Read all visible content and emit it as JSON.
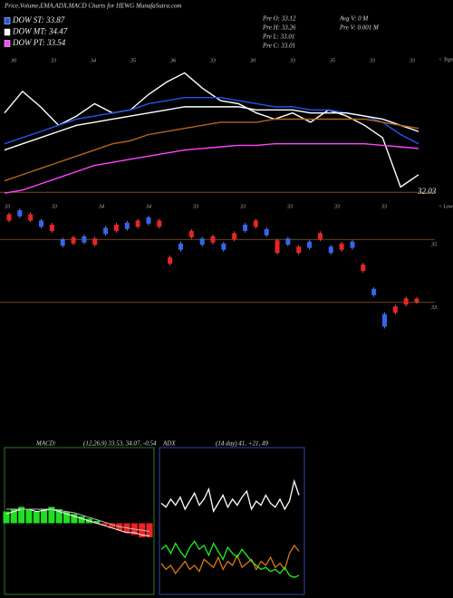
{
  "header": {
    "title": "Price,Volume,EMA,ADX,MACD Charts for HEWG MunafaSutra.com",
    "info_left": [
      "Pre  O: 33.12",
      "Pre  H: 33.26",
      "Pre  L: 33.01",
      "Pre  C: 33.01"
    ],
    "info_right": [
      "Avg V: 0  M",
      "Pre  V: 0.001 M"
    ]
  },
  "chart_data": [
    {
      "type": "line",
      "top_labels": [
        "30",
        "33",
        "34",
        "35",
        "36",
        "33",
        "30",
        "33",
        "35",
        "33",
        "33"
      ],
      "bottom_labels": [
        "33",
        "33",
        "34",
        "34",
        "33",
        "33",
        "33",
        "33",
        "33"
      ],
      "tops_label": "< Tops",
      "lows_label": "< Lows",
      "ylim": [
        31.8,
        36.5
      ],
      "hline": 32.03,
      "series": [
        {
          "color": "#ffffff",
          "values": [
            34.6,
            35.3,
            34.8,
            34.2,
            34.5,
            34.9,
            34.6,
            34.7,
            35.2,
            35.6,
            35.9,
            35.4,
            35.0,
            34.9,
            34.6,
            34.4,
            34.6,
            34.3,
            34.7,
            34.5,
            34.2,
            33.8,
            32.2,
            32.6
          ]
        },
        {
          "name": "DOW ST: 33.87",
          "color": "#2255ee",
          "values": [
            33.6,
            33.8,
            34.0,
            34.2,
            34.4,
            34.5,
            34.6,
            34.7,
            34.9,
            35.0,
            35.1,
            35.1,
            35.1,
            35.0,
            34.9,
            34.8,
            34.8,
            34.7,
            34.7,
            34.6,
            34.5,
            34.3,
            33.9,
            33.6
          ]
        },
        {
          "name": "DOW MT: 34.47",
          "color": "#ffffff",
          "values": [
            33.4,
            33.6,
            33.8,
            34.0,
            34.2,
            34.3,
            34.4,
            34.5,
            34.6,
            34.7,
            34.8,
            34.8,
            34.8,
            34.8,
            34.7,
            34.7,
            34.7,
            34.6,
            34.6,
            34.6,
            34.5,
            34.4,
            34.2,
            34.0
          ]
        },
        {
          "color": "#b5651d",
          "values": [
            32.4,
            32.6,
            32.8,
            33.0,
            33.2,
            33.4,
            33.6,
            33.7,
            33.9,
            34.0,
            34.1,
            34.2,
            34.3,
            34.3,
            34.3,
            34.4,
            34.4,
            34.4,
            34.4,
            34.4,
            34.4,
            34.3,
            34.2,
            34.1
          ]
        },
        {
          "name": "DOW PT: 33.54",
          "color": "#ff44ff",
          "values": [
            32.0,
            32.1,
            32.3,
            32.5,
            32.7,
            32.9,
            33.0,
            33.1,
            33.2,
            33.3,
            33.4,
            33.45,
            33.5,
            33.55,
            33.55,
            33.6,
            33.6,
            33.6,
            33.6,
            33.6,
            33.6,
            33.55,
            33.5,
            33.45
          ]
        }
      ]
    },
    {
      "type": "candlestick",
      "open": [
        35.8,
        35.73,
        35.8,
        35.4,
        35.47,
        34.8,
        35.07,
        34.9,
        35.03,
        35.17,
        35.47,
        35.33,
        35.6,
        35.5,
        35.6,
        34.43,
        34.67,
        35.27,
        34.83,
        35.1,
        34.67,
        35.2,
        35.27,
        35.6,
        35.13,
        34.97,
        34.83,
        34.77,
        34.73,
        35.2,
        34.57,
        34.87,
        34.73,
        34.2,
        33.23,
        32.23,
        32.87,
        33.13,
        33.12
      ],
      "close": [
        35.6,
        35.93,
        35.6,
        35.6,
        35.27,
        35.0,
        34.87,
        35.1,
        34.83,
        35.37,
        35.27,
        35.53,
        35.4,
        35.7,
        35.4,
        34.23,
        34.87,
        35.07,
        35.03,
        34.9,
        34.87,
        35.0,
        35.47,
        35.4,
        35.33,
        34.57,
        35.03,
        34.57,
        34.93,
        35.0,
        34.77,
        34.67,
        34.93,
        34.0,
        33.43,
        32.63,
        32.67,
        32.93,
        33.01
      ],
      "up_color": "#3366ee",
      "down_color": "#ee2222",
      "ylim": [
        31.9,
        36.1
      ],
      "yticks": [
        35,
        33
      ]
    },
    {
      "type": "macd",
      "label": "MACD:",
      "params": "(12,26,9) 33.53, 34.07, -0.54",
      "ylim": [
        -3,
        3
      ],
      "series": [
        {
          "color": "#ffffff",
          "values": [
            0.4,
            0.5,
            0.6,
            0.6,
            0.5,
            0.55,
            0.6,
            0.5,
            0.4,
            0.3,
            0.2,
            0.1,
            0.0,
            -0.1,
            -0.2,
            -0.3,
            -0.4,
            -0.4,
            -0.5,
            -0.54
          ]
        },
        {
          "color": "#bbbbbb",
          "values": [
            0.6,
            0.6,
            0.6,
            0.6,
            0.6,
            0.6,
            0.6,
            0.55,
            0.5,
            0.45,
            0.35,
            0.25,
            0.15,
            0.05,
            -0.05,
            -0.15,
            -0.2,
            -0.25,
            -0.3,
            -0.35
          ]
        }
      ],
      "histogram": [
        0.5,
        0.6,
        0.7,
        0.6,
        0.5,
        0.6,
        0.7,
        0.6,
        0.5,
        0.4,
        0.3,
        0.2,
        0.1,
        -0.1,
        -0.2,
        -0.3,
        -0.4,
        -0.5,
        -0.6,
        -0.6
      ],
      "pos_color": "#22dd22",
      "neg_color": "#ee2222"
    },
    {
      "type": "adx",
      "label": "ADX",
      "params": "(14 day) 41, +21, 49",
      "ylim": [
        0,
        70
      ],
      "series": [
        {
          "color": "#ffffff",
          "values": [
            45,
            43,
            47,
            44,
            48,
            42,
            46,
            50,
            44,
            47,
            52,
            41,
            45,
            49,
            43,
            47,
            44,
            48,
            51,
            42,
            46,
            44,
            49,
            45,
            43,
            47,
            42,
            46,
            56,
            49
          ]
        },
        {
          "color": "#dd7711",
          "values": [
            15,
            12,
            14,
            10,
            13,
            16,
            12,
            14,
            11,
            17,
            15,
            13,
            18,
            12,
            16,
            14,
            19,
            13,
            15,
            17,
            12,
            16,
            14,
            18,
            13,
            15,
            12,
            20,
            24,
            21
          ]
        },
        {
          "color": "#22ee22",
          "values": [
            22,
            24,
            20,
            25,
            21,
            18,
            23,
            26,
            22,
            24,
            19,
            25,
            21,
            17,
            23,
            20,
            18,
            22,
            19,
            16,
            14,
            12,
            13,
            11,
            12,
            10,
            13,
            9,
            8,
            9
          ]
        }
      ]
    }
  ]
}
